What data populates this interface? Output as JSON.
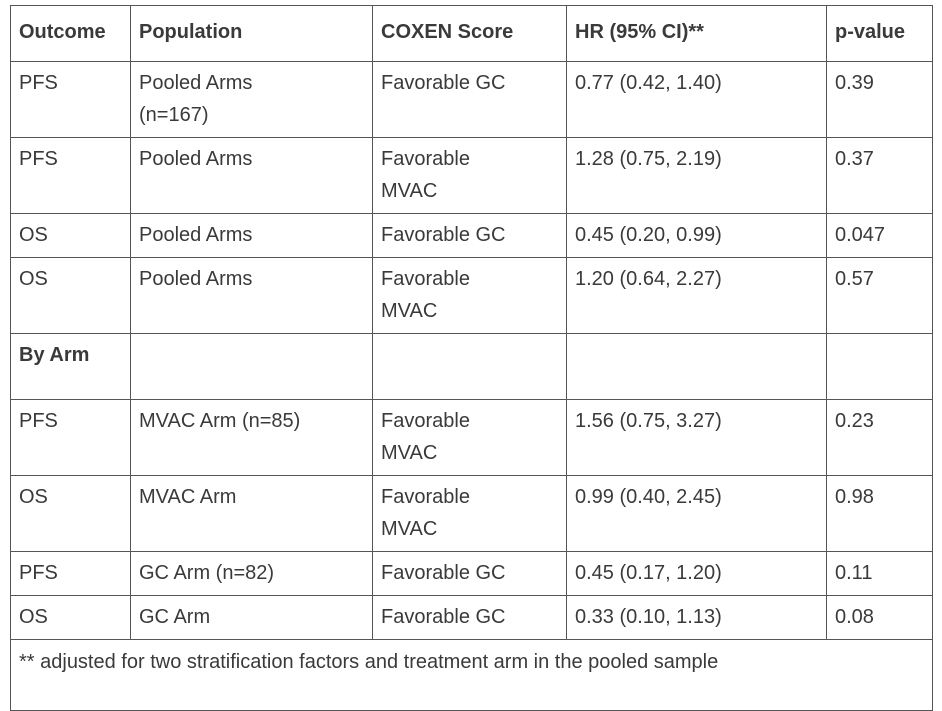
{
  "table": {
    "header": [
      "Outcome",
      "Population",
      "COXEN Score",
      "HR (95% CI)**",
      "p-value"
    ],
    "rows": [
      [
        "PFS",
        "Pooled Arms\n(n=167)",
        "Favorable GC",
        "0.77 (0.42, 1.40)",
        "0.39"
      ],
      [
        "PFS",
        "Pooled Arms",
        "Favorable\nMVAC",
        "1.28 (0.75, 2.19)",
        "0.37"
      ],
      [
        "OS",
        "Pooled Arms",
        "Favorable GC",
        "0.45 (0.20, 0.99)",
        "0.047"
      ],
      [
        "OS",
        "Pooled Arms",
        "Favorable\nMVAC",
        "1.20 (0.64, 2.27)",
        "0.57"
      ]
    ],
    "section_label": "By Arm",
    "section_rows": [
      [
        "PFS",
        "MVAC Arm (n=85)",
        "Favorable\nMVAC",
        "1.56 (0.75, 3.27)",
        "0.23"
      ],
      [
        "OS",
        "MVAC Arm",
        "Favorable\nMVAC",
        "0.99 (0.40, 2.45)",
        "0.98"
      ],
      [
        "PFS",
        "GC Arm (n=82)",
        "Favorable GC",
        "0.45 (0.17, 1.20)",
        "0.11"
      ],
      [
        "OS",
        "GC Arm",
        "Favorable GC",
        "0.33 (0.10, 1.13)",
        "0.08"
      ]
    ],
    "footnote": "** adjusted for two stratification factors and treatment arm in the pooled sample"
  }
}
